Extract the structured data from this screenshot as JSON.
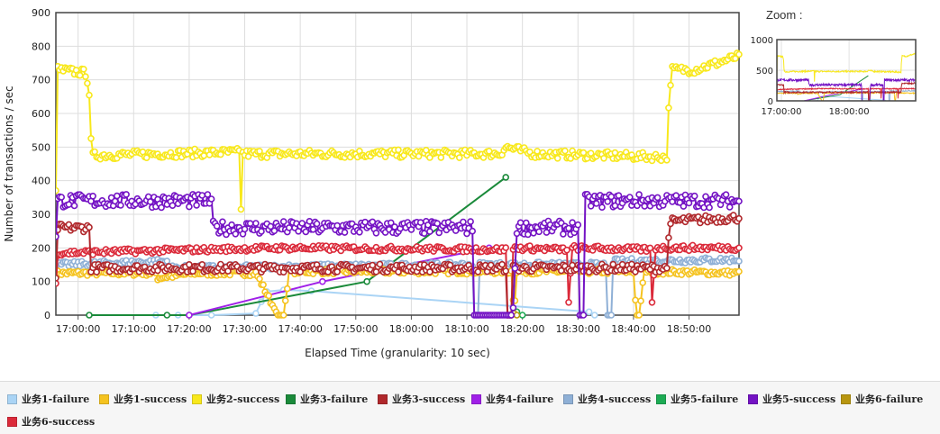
{
  "zoom": {
    "title": "Zoom :"
  },
  "chart_data": {
    "type": "line",
    "title": "",
    "xlabel": "Elapsed Time (granularity: 10 sec)",
    "ylabel": "Number of transactions / sec",
    "x_unit": "minutes since 16:56:00",
    "xlim": [
      0,
      123
    ],
    "ylim": [
      0,
      900
    ],
    "y_ticks": [
      0,
      100,
      200,
      300,
      400,
      500,
      600,
      700,
      800,
      900
    ],
    "x_ticks": [
      {
        "t": 4,
        "label": "17:00:00"
      },
      {
        "t": 14,
        "label": "17:10:00"
      },
      {
        "t": 24,
        "label": "17:20:00"
      },
      {
        "t": 34,
        "label": "17:30:00"
      },
      {
        "t": 44,
        "label": "17:40:00"
      },
      {
        "t": 54,
        "label": "17:50:00"
      },
      {
        "t": 64,
        "label": "18:00:00"
      },
      {
        "t": 74,
        "label": "18:10:00"
      },
      {
        "t": 84,
        "label": "18:20:00"
      },
      {
        "t": 94,
        "label": "18:30:00"
      },
      {
        "t": 104,
        "label": "18:40:00"
      },
      {
        "t": 114,
        "label": "18:50:00"
      }
    ],
    "grid": true,
    "series": [
      {
        "name": "业务1-failure",
        "color": "#aad4f5",
        "points": [
          [
            18,
            0
          ],
          [
            22,
            0
          ],
          [
            28,
            0
          ],
          [
            36,
            5
          ],
          [
            37,
            40
          ],
          [
            38,
            70
          ],
          [
            41,
            75
          ],
          [
            46,
            72
          ],
          [
            96,
            10
          ],
          [
            97,
            0
          ]
        ]
      },
      {
        "name": "业务1-success",
        "color": "#f5c320",
        "base": 125,
        "noise": 8,
        "segments": [
          [
            0,
            125
          ],
          [
            18,
            125
          ],
          [
            18.2,
            110
          ],
          [
            25,
            125
          ],
          [
            36,
            125
          ],
          [
            37,
            95
          ],
          [
            39,
            30
          ],
          [
            40,
            0
          ],
          [
            41,
            0
          ],
          [
            42,
            130
          ],
          [
            82,
            130
          ],
          [
            82.5,
            10
          ],
          [
            83,
            130
          ],
          [
            100,
            130
          ],
          [
            104,
            130
          ],
          [
            104.5,
            0
          ],
          [
            105,
            0
          ],
          [
            105.5,
            70
          ],
          [
            106,
            130
          ],
          [
            123,
            125
          ]
        ]
      },
      {
        "name": "业务2-success",
        "color": "#f8e81c",
        "base": 480,
        "noise": 12,
        "segments": [
          [
            0,
            380
          ],
          [
            0.3,
            730
          ],
          [
            5.5,
            720
          ],
          [
            6,
            660
          ],
          [
            6.3,
            520
          ],
          [
            6.6,
            475
          ],
          [
            33,
            485
          ],
          [
            33.3,
            300
          ],
          [
            33.6,
            480
          ],
          [
            80,
            480
          ],
          [
            81,
            500
          ],
          [
            86,
            480
          ],
          [
            110,
            470
          ],
          [
            110.3,
            600
          ],
          [
            110.8,
            730
          ],
          [
            115,
            730
          ],
          [
            123,
            770
          ]
        ]
      },
      {
        "name": "业务3-failure",
        "color": "#1a8a3a",
        "points": [
          [
            6,
            0
          ],
          [
            20,
            0
          ],
          [
            24,
            0
          ],
          [
            56,
            100
          ],
          [
            81,
            410
          ]
        ]
      },
      {
        "name": "业务3-success",
        "color": "#b0282c",
        "base": 260,
        "noise": 12,
        "segments": [
          [
            0,
            100
          ],
          [
            0.3,
            260
          ],
          [
            6,
            260
          ],
          [
            6.3,
            140
          ],
          [
            81,
            140
          ],
          [
            81.3,
            0
          ],
          [
            82,
            0
          ],
          [
            82.3,
            140
          ],
          [
            110,
            140
          ],
          [
            110.3,
            240
          ],
          [
            111,
            280
          ],
          [
            123,
            290
          ],
          [
            123.2,
            0
          ]
        ]
      },
      {
        "name": "业务4-failure",
        "color": "#a020e8",
        "points": [
          [
            24,
            0
          ],
          [
            48,
            100
          ],
          [
            78,
            200
          ]
        ]
      },
      {
        "name": "业务4-success",
        "color": "#8fb0d6",
        "base": 160,
        "noise": 8,
        "segments": [
          [
            0,
            150
          ],
          [
            20,
            160
          ],
          [
            20.3,
            140
          ],
          [
            75,
            150
          ],
          [
            75.3,
            0
          ],
          [
            76,
            0
          ],
          [
            76.3,
            150
          ],
          [
            99,
            150
          ],
          [
            99.3,
            0
          ],
          [
            100,
            0
          ],
          [
            100.3,
            160
          ],
          [
            123,
            165
          ]
        ]
      },
      {
        "name": "业务5-failure",
        "color": "#1dab54",
        "points": [
          [
            82,
            0
          ],
          [
            83,
            10
          ],
          [
            84,
            0
          ]
        ]
      },
      {
        "name": "业务5-success",
        "color": "#7413c4",
        "base": 340,
        "noise": 20,
        "segments": [
          [
            0,
            230
          ],
          [
            0.3,
            340
          ],
          [
            28,
            340
          ],
          [
            28.3,
            260
          ],
          [
            75,
            260
          ],
          [
            75.3,
            0
          ],
          [
            82,
            0
          ],
          [
            82.3,
            10
          ],
          [
            83,
            260
          ],
          [
            94,
            260
          ],
          [
            94.3,
            0
          ],
          [
            95,
            0
          ],
          [
            95.3,
            340
          ],
          [
            123,
            340
          ],
          [
            123.2,
            30
          ]
        ]
      },
      {
        "name": "业务6-failure",
        "color": "#b8960f",
        "points": [
          [
            82,
            0
          ],
          [
            82.5,
            5
          ],
          [
            83,
            0
          ]
        ]
      },
      {
        "name": "业务6-success",
        "color": "#db2a3a",
        "base": 195,
        "noise": 8,
        "segments": [
          [
            0,
            90
          ],
          [
            0.3,
            185
          ],
          [
            40,
            200
          ],
          [
            81,
            195
          ],
          [
            81.3,
            0
          ],
          [
            82,
            0
          ],
          [
            82.3,
            200
          ],
          [
            92,
            195
          ],
          [
            92.3,
            30
          ],
          [
            93,
            200
          ],
          [
            107,
            195
          ],
          [
            107.3,
            30
          ],
          [
            108,
            200
          ],
          [
            123,
            200
          ],
          [
            123.2,
            0
          ]
        ]
      }
    ],
    "zoom_chart": {
      "ylim": [
        0,
        1000
      ],
      "y_ticks": [
        0,
        500,
        1000
      ],
      "x_ticks": [
        {
          "t": 4,
          "label": "17:00:00"
        },
        {
          "t": 64,
          "label": "18:00:00"
        }
      ]
    }
  }
}
